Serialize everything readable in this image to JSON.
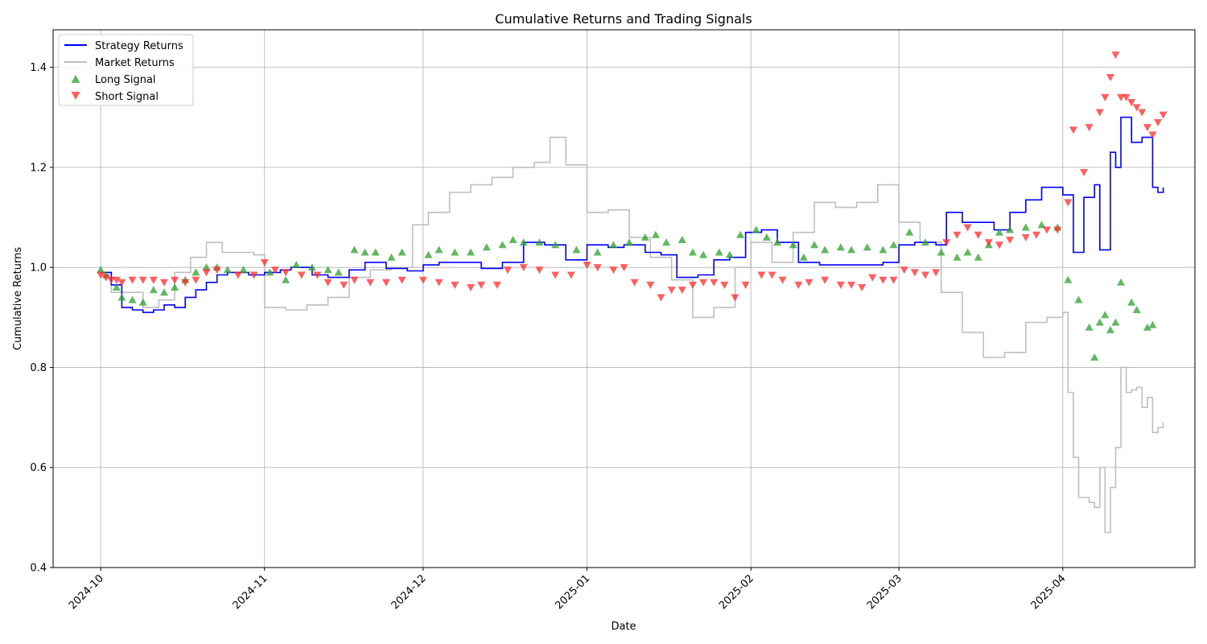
{
  "chart_data": {
    "type": "line",
    "title": "Cumulative Returns and Trading Signals",
    "xlabel": "Date",
    "ylabel": "Cumulative Returns",
    "xlim": [
      "2024-09-22",
      "2025-04-26"
    ],
    "ylim": [
      0.4,
      1.475
    ],
    "x_ticks": [
      "2024-10-01",
      "2024-11-01",
      "2024-12-01",
      "2025-01-01",
      "2025-02-01",
      "2025-03-01",
      "2025-04-01"
    ],
    "x_tick_labels": [
      "2024-10",
      "2024-11",
      "2024-12",
      "2025-01",
      "2025-02",
      "2025-03",
      "2025-04"
    ],
    "y_ticks": [
      0.4,
      0.6,
      0.8,
      1.0,
      1.2,
      1.4
    ],
    "y_tick_labels": [
      "0.4",
      "0.6",
      "0.8",
      "1.0",
      "1.2",
      "1.4"
    ],
    "grid": true,
    "legend_position": "top-left",
    "colors": {
      "strategy": "#0000ff",
      "market": "#bfbfbf",
      "long": "#2ca02c",
      "short": "#ff2a2a"
    },
    "series": [
      {
        "name": "Strategy Returns",
        "kind": "line",
        "x": [
          "2024-10-01",
          "2024-10-03",
          "2024-10-05",
          "2024-10-07",
          "2024-10-09",
          "2024-10-11",
          "2024-10-13",
          "2024-10-15",
          "2024-10-17",
          "2024-10-19",
          "2024-10-21",
          "2024-10-23",
          "2024-10-25",
          "2024-10-29",
          "2024-11-01",
          "2024-11-04",
          "2024-11-06",
          "2024-11-10",
          "2024-11-13",
          "2024-11-17",
          "2024-11-20",
          "2024-11-24",
          "2024-11-28",
          "2024-12-01",
          "2024-12-04",
          "2024-12-08",
          "2024-12-12",
          "2024-12-16",
          "2024-12-20",
          "2024-12-24",
          "2024-12-28",
          "2025-01-01",
          "2025-01-05",
          "2025-01-08",
          "2025-01-12",
          "2025-01-15",
          "2025-01-18",
          "2025-01-22",
          "2025-01-25",
          "2025-01-28",
          "2025-01-31",
          "2025-02-03",
          "2025-02-06",
          "2025-02-10",
          "2025-02-14",
          "2025-02-18",
          "2025-02-22",
          "2025-02-26",
          "2025-03-01",
          "2025-03-04",
          "2025-03-08",
          "2025-03-10",
          "2025-03-13",
          "2025-03-16",
          "2025-03-19",
          "2025-03-22",
          "2025-03-25",
          "2025-03-28",
          "2025-04-01",
          "2025-04-03",
          "2025-04-05",
          "2025-04-07",
          "2025-04-08",
          "2025-04-10",
          "2025-04-11",
          "2025-04-12",
          "2025-04-14",
          "2025-04-16",
          "2025-04-18",
          "2025-04-19",
          "2025-04-20"
        ],
        "y": [
          0.99,
          0.965,
          0.92,
          0.915,
          0.91,
          0.915,
          0.925,
          0.92,
          0.94,
          0.955,
          0.97,
          0.985,
          0.99,
          0.985,
          0.99,
          0.995,
          1.0,
          0.985,
          0.98,
          0.995,
          1.01,
          0.998,
          0.993,
          1.005,
          1.01,
          1.01,
          0.998,
          1.01,
          1.05,
          1.045,
          1.015,
          1.045,
          1.04,
          1.045,
          1.03,
          1.025,
          0.98,
          0.985,
          1.015,
          1.02,
          1.07,
          1.075,
          1.05,
          1.01,
          1.005,
          1.005,
          1.005,
          1.01,
          1.045,
          1.05,
          1.045,
          1.11,
          1.09,
          1.09,
          1.075,
          1.11,
          1.135,
          1.16,
          1.145,
          1.03,
          1.14,
          1.165,
          1.035,
          1.23,
          1.2,
          1.3,
          1.25,
          1.26,
          1.16,
          1.15,
          1.16
        ]
      },
      {
        "name": "Market Returns",
        "kind": "line",
        "x": [
          "2024-10-01",
          "2024-10-03",
          "2024-10-06",
          "2024-10-09",
          "2024-10-12",
          "2024-10-15",
          "2024-10-18",
          "2024-10-21",
          "2024-10-24",
          "2024-10-27",
          "2024-10-30",
          "2024-11-01",
          "2024-11-05",
          "2024-11-09",
          "2024-11-13",
          "2024-11-17",
          "2024-11-21",
          "2024-11-25",
          "2024-11-29",
          "2024-12-02",
          "2024-12-06",
          "2024-12-10",
          "2024-12-14",
          "2024-12-18",
          "2024-12-22",
          "2024-12-25",
          "2024-12-28",
          "2025-01-01",
          "2025-01-05",
          "2025-01-09",
          "2025-01-13",
          "2025-01-17",
          "2025-01-21",
          "2025-01-25",
          "2025-01-29",
          "2025-02-01",
          "2025-02-05",
          "2025-02-09",
          "2025-02-13",
          "2025-02-17",
          "2025-02-21",
          "2025-02-25",
          "2025-03-01",
          "2025-03-05",
          "2025-03-09",
          "2025-03-13",
          "2025-03-17",
          "2025-03-21",
          "2025-03-25",
          "2025-03-29",
          "2025-04-01",
          "2025-04-02",
          "2025-04-03",
          "2025-04-04",
          "2025-04-06",
          "2025-04-07",
          "2025-04-08",
          "2025-04-09",
          "2025-04-10",
          "2025-04-11",
          "2025-04-12",
          "2025-04-13",
          "2025-04-14",
          "2025-04-15",
          "2025-04-16",
          "2025-04-17",
          "2025-04-18",
          "2025-04-19",
          "2025-04-20"
        ],
        "y": [
          0.99,
          0.95,
          0.95,
          0.92,
          0.935,
          0.99,
          1.02,
          1.05,
          1.03,
          1.03,
          1.025,
          0.92,
          0.915,
          0.925,
          0.94,
          0.98,
          0.995,
          1.0,
          1.085,
          1.11,
          1.15,
          1.165,
          1.18,
          1.2,
          1.21,
          1.26,
          1.205,
          1.11,
          1.115,
          1.06,
          1.02,
          0.975,
          0.9,
          0.92,
          1.0,
          1.05,
          1.01,
          1.07,
          1.13,
          1.12,
          1.13,
          1.165,
          1.09,
          1.05,
          0.95,
          0.87,
          0.82,
          0.83,
          0.89,
          0.9,
          0.91,
          0.75,
          0.62,
          0.54,
          0.53,
          0.52,
          0.6,
          0.47,
          0.56,
          0.64,
          0.8,
          0.75,
          0.755,
          0.76,
          0.72,
          0.74,
          0.67,
          0.68,
          0.69
        ]
      },
      {
        "name": "Long Signal",
        "kind": "scatter",
        "marker": "triangle-up",
        "x": [
          "2024-10-01",
          "2024-10-02",
          "2024-10-04",
          "2024-10-05",
          "2024-10-07",
          "2024-10-09",
          "2024-10-11",
          "2024-10-13",
          "2024-10-15",
          "2024-10-17",
          "2024-10-19",
          "2024-10-21",
          "2024-10-23",
          "2024-10-25",
          "2024-10-28",
          "2024-11-02",
          "2024-11-05",
          "2024-11-07",
          "2024-11-10",
          "2024-11-13",
          "2024-11-15",
          "2024-11-18",
          "2024-11-20",
          "2024-11-22",
          "2024-11-25",
          "2024-11-27",
          "2024-12-02",
          "2024-12-04",
          "2024-12-07",
          "2024-12-10",
          "2024-12-13",
          "2024-12-16",
          "2024-12-18",
          "2024-12-20",
          "2024-12-23",
          "2024-12-26",
          "2024-12-30",
          "2025-01-03",
          "2025-01-06",
          "2025-01-09",
          "2025-01-12",
          "2025-01-14",
          "2025-01-16",
          "2025-01-19",
          "2025-01-21",
          "2025-01-23",
          "2025-01-26",
          "2025-01-28",
          "2025-01-30",
          "2025-02-02",
          "2025-02-04",
          "2025-02-06",
          "2025-02-09",
          "2025-02-11",
          "2025-02-13",
          "2025-02-15",
          "2025-02-18",
          "2025-02-20",
          "2025-02-23",
          "2025-02-26",
          "2025-02-28",
          "2025-03-03",
          "2025-03-06",
          "2025-03-09",
          "2025-03-12",
          "2025-03-14",
          "2025-03-16",
          "2025-03-18",
          "2025-03-20",
          "2025-03-22",
          "2025-03-25",
          "2025-03-28",
          "2025-03-31",
          "2025-04-02",
          "2025-04-04",
          "2025-04-06",
          "2025-04-07",
          "2025-04-08",
          "2025-04-09",
          "2025-04-10",
          "2025-04-11",
          "2025-04-12",
          "2025-04-14",
          "2025-04-15",
          "2025-04-17",
          "2025-04-18"
        ],
        "y": [
          0.995,
          0.985,
          0.96,
          0.94,
          0.935,
          0.93,
          0.955,
          0.95,
          0.96,
          0.975,
          0.99,
          1.0,
          1.0,
          0.995,
          0.995,
          0.99,
          0.975,
          1.005,
          1.0,
          0.995,
          0.99,
          1.035,
          1.03,
          1.03,
          1.02,
          1.03,
          1.025,
          1.035,
          1.03,
          1.03,
          1.04,
          1.045,
          1.055,
          1.05,
          1.05,
          1.045,
          1.035,
          1.03,
          1.045,
          1.05,
          1.06,
          1.065,
          1.05,
          1.055,
          1.03,
          1.025,
          1.03,
          1.025,
          1.065,
          1.075,
          1.06,
          1.05,
          1.045,
          1.02,
          1.045,
          1.035,
          1.04,
          1.035,
          1.04,
          1.035,
          1.045,
          1.07,
          1.05,
          1.03,
          1.02,
          1.03,
          1.02,
          1.045,
          1.07,
          1.075,
          1.08,
          1.085,
          1.08,
          0.975,
          0.935,
          0.88,
          0.82,
          0.89,
          0.905,
          0.875,
          0.89,
          0.97,
          0.93,
          0.915,
          0.88,
          0.885
        ]
      },
      {
        "name": "Short Signal",
        "kind": "scatter",
        "marker": "triangle-down",
        "x": [
          "2024-10-01",
          "2024-10-02",
          "2024-10-03",
          "2024-10-04",
          "2024-10-05",
          "2024-10-07",
          "2024-10-09",
          "2024-10-11",
          "2024-10-13",
          "2024-10-15",
          "2024-10-17",
          "2024-10-19",
          "2024-10-21",
          "2024-10-23",
          "2024-10-27",
          "2024-10-30",
          "2024-11-01",
          "2024-11-03",
          "2024-11-05",
          "2024-11-08",
          "2024-11-11",
          "2024-11-13",
          "2024-11-16",
          "2024-11-18",
          "2024-11-21",
          "2024-11-24",
          "2024-11-27",
          "2024-12-01",
          "2024-12-04",
          "2024-12-07",
          "2024-12-10",
          "2024-12-12",
          "2024-12-15",
          "2024-12-17",
          "2024-12-20",
          "2024-12-23",
          "2024-12-26",
          "2024-12-29",
          "2025-01-01",
          "2025-01-03",
          "2025-01-06",
          "2025-01-08",
          "2025-01-10",
          "2025-01-13",
          "2025-01-15",
          "2025-01-17",
          "2025-01-19",
          "2025-01-21",
          "2025-01-23",
          "2025-01-25",
          "2025-01-27",
          "2025-01-29",
          "2025-01-31",
          "2025-02-03",
          "2025-02-05",
          "2025-02-07",
          "2025-02-10",
          "2025-02-12",
          "2025-02-15",
          "2025-02-18",
          "2025-02-20",
          "2025-02-22",
          "2025-02-24",
          "2025-02-26",
          "2025-02-28",
          "2025-03-02",
          "2025-03-04",
          "2025-03-06",
          "2025-03-08",
          "2025-03-10",
          "2025-03-12",
          "2025-03-14",
          "2025-03-16",
          "2025-03-18",
          "2025-03-20",
          "2025-03-22",
          "2025-03-25",
          "2025-03-27",
          "2025-03-29",
          "2025-03-31",
          "2025-04-02",
          "2025-04-03",
          "2025-04-05",
          "2025-04-06",
          "2025-04-08",
          "2025-04-09",
          "2025-04-10",
          "2025-04-11",
          "2025-04-12",
          "2025-04-13",
          "2025-04-14",
          "2025-04-15",
          "2025-04-16",
          "2025-04-17",
          "2025-04-18",
          "2025-04-19",
          "2025-04-20"
        ],
        "y": [
          0.985,
          0.98,
          0.975,
          0.975,
          0.97,
          0.975,
          0.975,
          0.975,
          0.97,
          0.975,
          0.97,
          0.975,
          0.99,
          0.995,
          0.985,
          0.985,
          1.01,
          0.995,
          0.99,
          0.985,
          0.985,
          0.97,
          0.965,
          0.975,
          0.97,
          0.97,
          0.975,
          0.975,
          0.97,
          0.965,
          0.96,
          0.965,
          0.965,
          0.995,
          1.0,
          0.995,
          0.985,
          0.985,
          1.005,
          1.0,
          0.995,
          1.0,
          0.97,
          0.965,
          0.94,
          0.955,
          0.955,
          0.965,
          0.97,
          0.97,
          0.965,
          0.94,
          0.965,
          0.985,
          0.985,
          0.975,
          0.965,
          0.97,
          0.975,
          0.965,
          0.965,
          0.96,
          0.98,
          0.975,
          0.975,
          0.995,
          0.99,
          0.985,
          0.99,
          1.05,
          1.065,
          1.08,
          1.065,
          1.05,
          1.045,
          1.055,
          1.06,
          1.065,
          1.075,
          1.075,
          1.13,
          1.275,
          1.19,
          1.28,
          1.31,
          1.34,
          1.38,
          1.425,
          1.34,
          1.34,
          1.33,
          1.32,
          1.31,
          1.28,
          1.265,
          1.29,
          1.305
        ]
      }
    ]
  }
}
